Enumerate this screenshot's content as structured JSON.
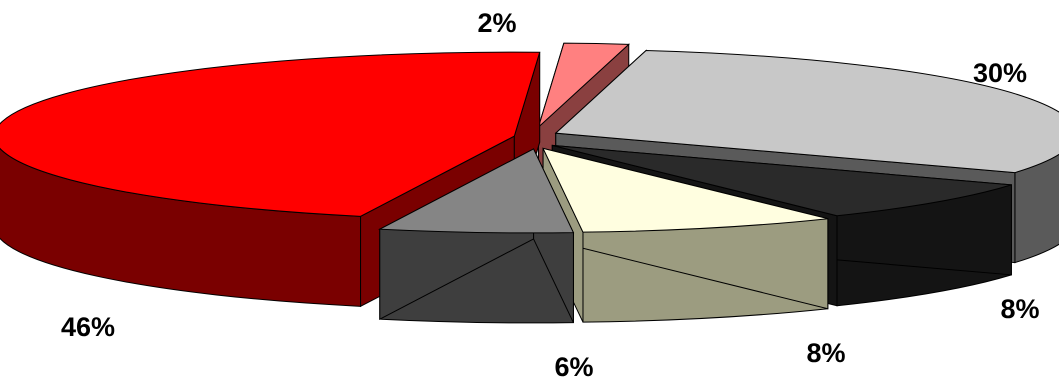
{
  "chart_data": {
    "type": "pie",
    "title": "",
    "legend": "none",
    "three_d": true,
    "exploded": true,
    "slices": [
      {
        "value": 30,
        "label": "30%",
        "top": "#c8c8c8",
        "side": "#5a5a5a"
      },
      {
        "value": 8,
        "label": "8%",
        "top": "#2a2a2a",
        "side": "#141414"
      },
      {
        "value": 8,
        "label": "8%",
        "top": "#fffee0",
        "side": "#9c9c80"
      },
      {
        "value": 6,
        "label": "6%",
        "top": "#858585",
        "side": "#3e3e3e"
      },
      {
        "value": 46,
        "label": "46%",
        "top": "#ff0000",
        "side": "#7a0000"
      },
      {
        "value": 2,
        "label": "2%",
        "top": "#ff8080",
        "side": "#8a4040"
      }
    ]
  }
}
